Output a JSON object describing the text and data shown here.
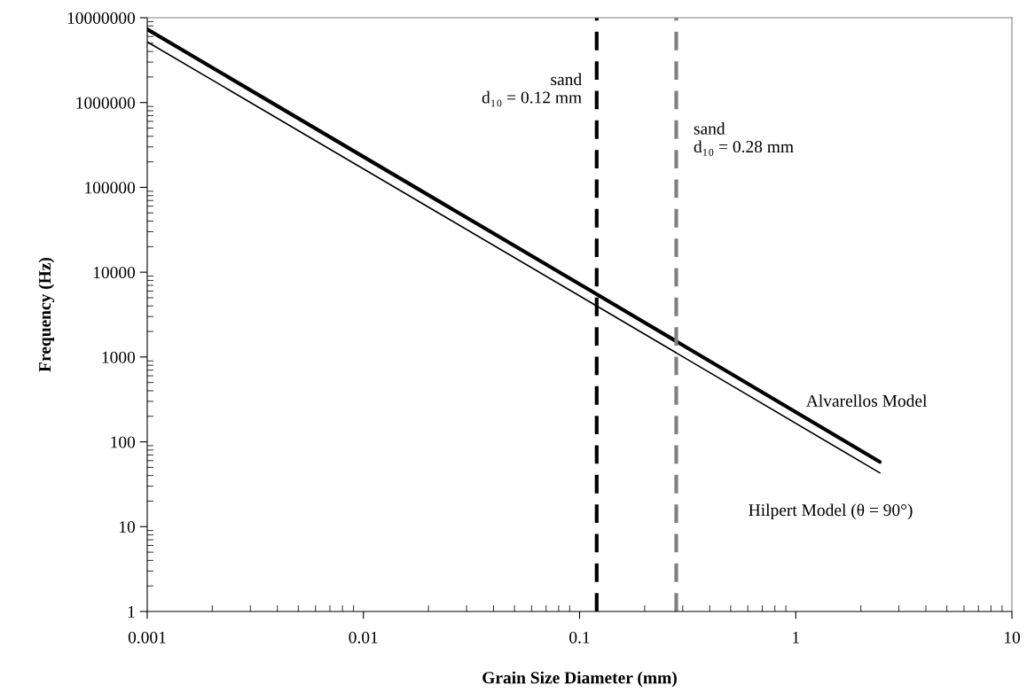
{
  "chart_data": {
    "type": "line",
    "xlabel": "Grain Size Diameter (mm)",
    "ylabel": "Frequency (Hz)",
    "log": "xy",
    "xlim": [
      0.001,
      10
    ],
    "xticks": [
      {
        "value": 0.001,
        "label": "0.001"
      },
      {
        "value": 0.01,
        "label": "0.01"
      },
      {
        "value": 0.1,
        "label": "0.1"
      },
      {
        "value": 1,
        "label": "1"
      },
      {
        "value": 10,
        "label": "10"
      }
    ],
    "ylim": [
      1,
      10000000
    ],
    "yticks": [
      1,
      10,
      100,
      1000,
      10000,
      100000,
      1000000,
      10000000
    ],
    "grid": false,
    "marker": "none",
    "line_style": "solid",
    "series": [
      {
        "name": "Alvarellos Model",
        "color": "#000000",
        "x": [
          0.001,
          0.12,
          2.45
        ],
        "values": [
          7300000,
          5500,
          58
        ]
      },
      {
        "name": "Hilpert Model (θ = 90°)",
        "color": "#000000",
        "x": [
          0.001,
          0.12,
          2.45
        ],
        "values": [
          5200000,
          4000,
          43
        ]
      }
    ],
    "ref_lines": [
      {
        "axis": "x",
        "value": 0.12,
        "label": "sand\nd₁₀ = 0.12 mm",
        "color": "#000000",
        "line_style": "dashed"
      },
      {
        "axis": "x",
        "value": 0.28,
        "label": "sand\nd₁₀ = 0.28 mm",
        "color": "#808080",
        "line_style": "dashed"
      }
    ]
  }
}
